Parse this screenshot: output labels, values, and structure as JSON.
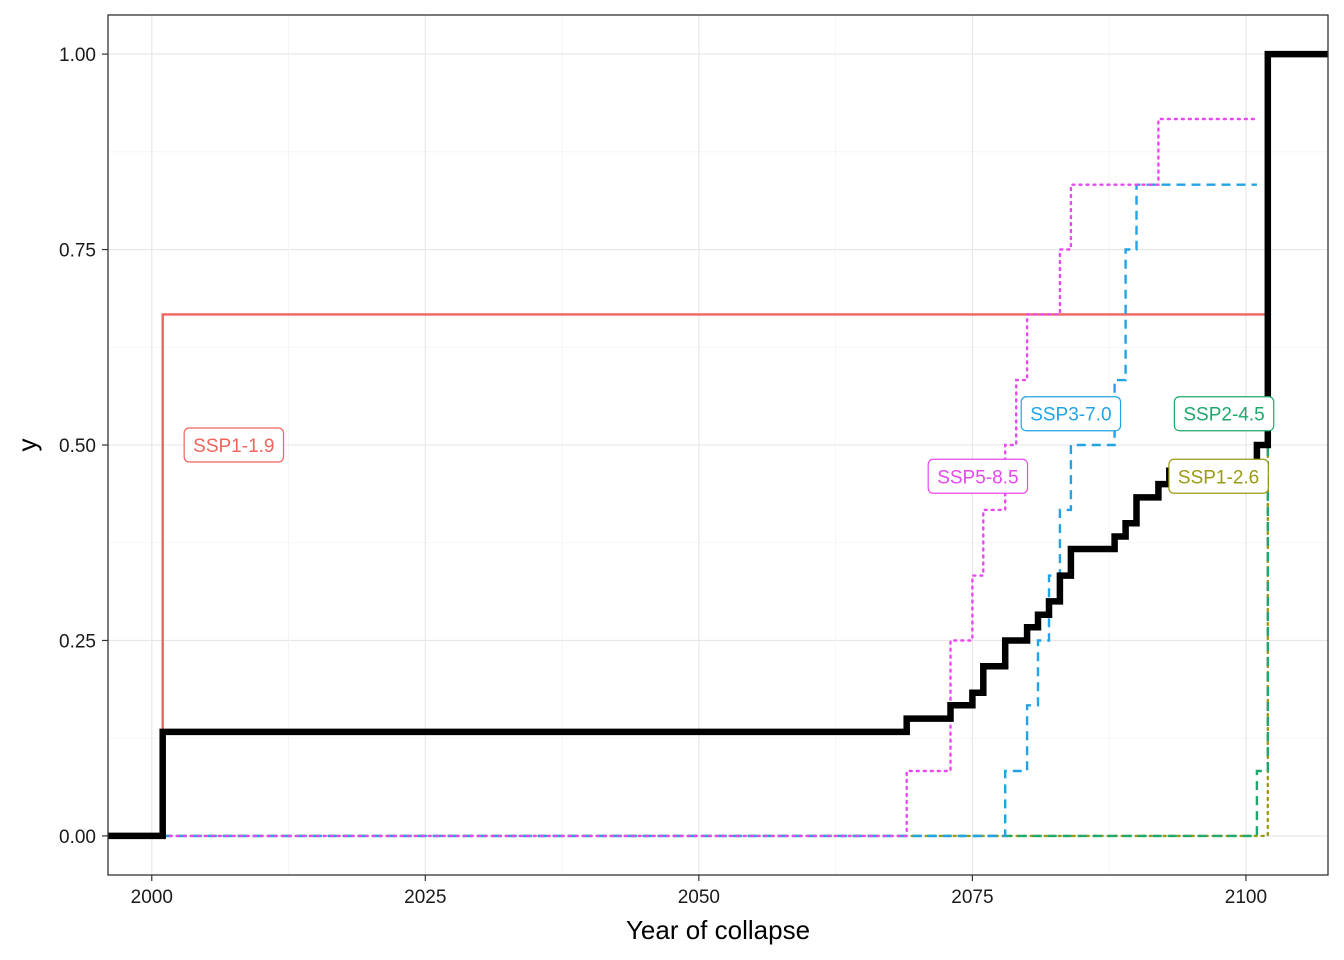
{
  "chart_data": {
    "type": "line",
    "subtype": "empirical-cdf-step",
    "title": "",
    "xlabel": "Year of collapse",
    "ylabel": "y",
    "xlim": [
      1996,
      2107.5
    ],
    "ylim": [
      -0.05,
      1.05
    ],
    "x_ticks": [
      2000,
      2025,
      2050,
      2075,
      2100
    ],
    "y_ticks": [
      0,
      0.25,
      0.5,
      0.75,
      1
    ],
    "y_tick_labels": [
      "0.00",
      "0.25",
      "0.50",
      "0.75",
      "1.00"
    ],
    "grid": true,
    "legend": "none (direct labels)",
    "series": [
      {
        "name": "SSP1-1.9",
        "color": "#f0645d",
        "dash": "solid",
        "label_position": {
          "x": 2007.5,
          "y": 0.5
        },
        "x": [
          2001,
          2001,
          2102
        ],
        "y": [
          0,
          0.667,
          0.667
        ]
      },
      {
        "name": "SSP1-2.6",
        "color": "#9a9a15",
        "dash": "dotted",
        "label_position": {
          "x": 2097.5,
          "y": 0.46
        },
        "x": [
          2001,
          2102,
          2102
        ],
        "y": [
          0,
          0,
          0.5
        ]
      },
      {
        "name": "SSP2-4.5",
        "color": "#1fa86b",
        "dash": "dashed",
        "label_position": {
          "x": 2098,
          "y": 0.54
        },
        "x": [
          2001,
          2101,
          2101,
          2102,
          2102
        ],
        "y": [
          0,
          0,
          0.083,
          0.083,
          0.5
        ]
      },
      {
        "name": "SSP3-7.0",
        "color": "#21a3e6",
        "dash": "dashed",
        "label_position": {
          "x": 2084,
          "y": 0.54
        },
        "x": [
          2001,
          2078,
          2078,
          2080,
          2080,
          2081,
          2081,
          2082,
          2082,
          2083,
          2083,
          2084,
          2084,
          2088,
          2088,
          2089,
          2089,
          2090,
          2090,
          2099,
          2099,
          2101
        ],
        "y": [
          0,
          0,
          0.083,
          0.083,
          0.167,
          0.167,
          0.25,
          0.25,
          0.333,
          0.333,
          0.417,
          0.417,
          0.5,
          0.5,
          0.583,
          0.583,
          0.75,
          0.75,
          0.833,
          0.833,
          0.833,
          0.833
        ]
      },
      {
        "name": "SSP5-8.5",
        "color": "#e748ef",
        "dash": "dotted",
        "label_position": {
          "x": 2075.5,
          "y": 0.46
        },
        "x": [
          2001,
          2069,
          2069,
          2073,
          2073,
          2075,
          2075,
          2076,
          2076,
          2078,
          2078,
          2079,
          2079,
          2080,
          2080,
          2083,
          2083,
          2084,
          2084,
          2092,
          2092,
          2096,
          2096,
          2101
        ],
        "y": [
          0,
          0,
          0.083,
          0.083,
          0.25,
          0.25,
          0.333,
          0.333,
          0.417,
          0.417,
          0.5,
          0.5,
          0.583,
          0.583,
          0.667,
          0.667,
          0.75,
          0.75,
          0.833,
          0.833,
          0.917,
          0.917,
          0.917,
          0.917
        ]
      },
      {
        "name": "",
        "color": "#000000",
        "dash": "solid",
        "thick": true,
        "x": [
          1996,
          2001,
          2001,
          2069,
          2069,
          2073,
          2073,
          2075,
          2075,
          2076,
          2076,
          2078,
          2078,
          2080,
          2080,
          2081,
          2081,
          2082,
          2082,
          2083,
          2083,
          2084,
          2084,
          2088,
          2088,
          2089,
          2089,
          2090,
          2090,
          2092,
          2092,
          2093,
          2093,
          2101,
          2101,
          2102,
          2102,
          2107.5
        ],
        "y": [
          0,
          0,
          0.133,
          0.133,
          0.15,
          0.15,
          0.167,
          0.167,
          0.183,
          0.183,
          0.217,
          0.217,
          0.25,
          0.25,
          0.267,
          0.267,
          0.283,
          0.283,
          0.3,
          0.3,
          0.333,
          0.333,
          0.367,
          0.367,
          0.383,
          0.383,
          0.4,
          0.4,
          0.433,
          0.433,
          0.45,
          0.45,
          0.467,
          0.467,
          0.5,
          0.5,
          1.0,
          1.0
        ]
      }
    ]
  }
}
